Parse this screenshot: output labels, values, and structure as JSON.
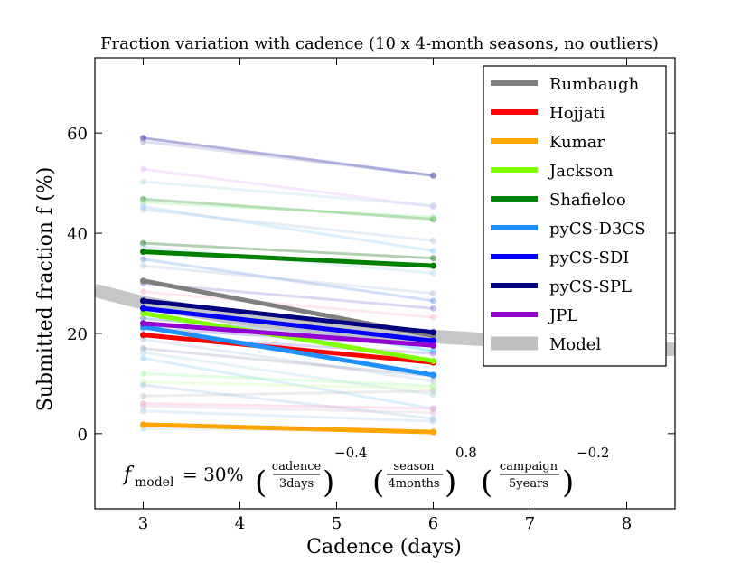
{
  "chart_data": {
    "type": "line",
    "title": "Fraction variation with cadence (10 x 4-month seasons, no outliers)",
    "xlabel": "Cadence (days)",
    "ylabel": "Submitted fraction f (%)",
    "xlim": [
      2.5,
      8.5
    ],
    "ylim": [
      -15,
      75
    ],
    "xticks": [
      3,
      4,
      5,
      6,
      7,
      8
    ],
    "yticks": [
      0,
      20,
      40,
      60
    ],
    "legend_position": "top-right",
    "formula": {
      "lhs": "f",
      "lhs_sub": "model",
      "equals": "= 30%",
      "t1_num": "cadence",
      "t1_den": "3days",
      "t1_exp": "−0.4",
      "t2_num": "season",
      "t2_den": "4months",
      "t2_exp": "0.8",
      "t3_num": "campaign",
      "t3_den": "5years",
      "t3_exp": "−0.2"
    },
    "model": {
      "name": "Model",
      "color": "#c0c0c0",
      "x": [
        2.5,
        3,
        4,
        5,
        6,
        7,
        8,
        8.5
      ],
      "y": [
        28.6,
        26.1,
        23.0,
        20.9,
        19.4,
        18.2,
        17.2,
        16.8
      ]
    },
    "series": [
      {
        "name": "Rumbaugh",
        "color": "#7f7f7f",
        "x": [
          3,
          6
        ],
        "y": [
          30.5,
          19.5
        ]
      },
      {
        "name": "Hojjati",
        "color": "#ff0000",
        "x": [
          3,
          6
        ],
        "y": [
          19.7,
          14.2
        ]
      },
      {
        "name": "Kumar",
        "color": "#ffa500",
        "x": [
          3,
          6
        ],
        "y": [
          1.8,
          0.3
        ]
      },
      {
        "name": "Jackson",
        "color": "#7fff00",
        "x": [
          3,
          6
        ],
        "y": [
          24.0,
          14.5
        ]
      },
      {
        "name": "Shafieloo",
        "color": "#008000",
        "x": [
          3,
          6
        ],
        "y": [
          36.3,
          33.5
        ]
      },
      {
        "name": "pyCS-D3CS",
        "color": "#1e90ff",
        "x": [
          3,
          6
        ],
        "y": [
          21.3,
          11.7
        ]
      },
      {
        "name": "pyCS-SDI",
        "color": "#0000ff",
        "x": [
          3,
          6
        ],
        "y": [
          25.0,
          18.5
        ]
      },
      {
        "name": "pyCS-SPL",
        "color": "#000080",
        "x": [
          3,
          6
        ],
        "y": [
          26.5,
          20.2
        ]
      },
      {
        "name": "JPL",
        "color": "#9400d3",
        "x": [
          3,
          6
        ],
        "y": [
          22.0,
          17.6
        ]
      }
    ],
    "faint_series": [
      {
        "color": "#00008b",
        "y": [
          59.0,
          51.5
        ]
      },
      {
        "color": "#9999cc",
        "y": [
          58.3,
          51.5
        ]
      },
      {
        "color": "#e0b0ff",
        "y": [
          52.8,
          45.3
        ]
      },
      {
        "color": "#add8e6",
        "y": [
          50.3,
          45.5
        ]
      },
      {
        "color": "#228b22",
        "y": [
          46.8,
          42.8
        ]
      },
      {
        "color": "#90ee90",
        "y": [
          46.2,
          43.2
        ]
      },
      {
        "color": "#87cefa",
        "y": [
          45.3,
          36.5
        ]
      },
      {
        "color": "#b0c4de",
        "y": [
          44.7,
          38.5
        ]
      },
      {
        "color": "#006400",
        "y": [
          38.0,
          35.0
        ]
      },
      {
        "color": "#add8e6",
        "y": [
          37.2,
          32.0
        ]
      },
      {
        "color": "#6495ed",
        "y": [
          34.8,
          26.5
        ]
      },
      {
        "color": "#b0c4de",
        "y": [
          33.5,
          28.0
        ]
      },
      {
        "color": "#9370db",
        "y": [
          30.0,
          25.0
        ]
      },
      {
        "color": "#ffb6c1",
        "y": [
          28.3,
          23.2
        ]
      },
      {
        "color": "#00bfff",
        "y": [
          26.0,
          16.5
        ]
      },
      {
        "color": "#d8bfd8",
        "y": [
          24.2,
          20.5
        ]
      },
      {
        "color": "#4682b4",
        "y": [
          23.0,
          18.0
        ]
      },
      {
        "color": "#6a5acd",
        "y": [
          21.0,
          17.5
        ]
      },
      {
        "color": "#9370db",
        "y": [
          19.5,
          16.0
        ]
      },
      {
        "color": "#b0c4de",
        "y": [
          18.8,
          10.5
        ]
      },
      {
        "color": "#9999bb",
        "y": [
          17.0,
          11.5
        ]
      },
      {
        "color": "#add8e6",
        "y": [
          16.2,
          7.8
        ]
      },
      {
        "color": "#87cefa",
        "y": [
          15.0,
          5.0
        ]
      },
      {
        "color": "#98fb98",
        "y": [
          12.0,
          9.5
        ]
      },
      {
        "color": "#ccff99",
        "y": [
          10.3,
          9.0
        ]
      },
      {
        "color": "#9bc1e6",
        "y": [
          9.7,
          3.0
        ]
      },
      {
        "color": "#c0c0c0",
        "y": [
          7.5,
          8.5
        ]
      },
      {
        "color": "#ff99cc",
        "y": [
          6.0,
          5.0
        ]
      },
      {
        "color": "#d8bfd8",
        "y": [
          5.5,
          4.2
        ]
      },
      {
        "color": "#aaccee",
        "y": [
          4.5,
          2.5
        ]
      },
      {
        "color": "#add8e6",
        "y": [
          1.0,
          0.5
        ]
      }
    ]
  }
}
